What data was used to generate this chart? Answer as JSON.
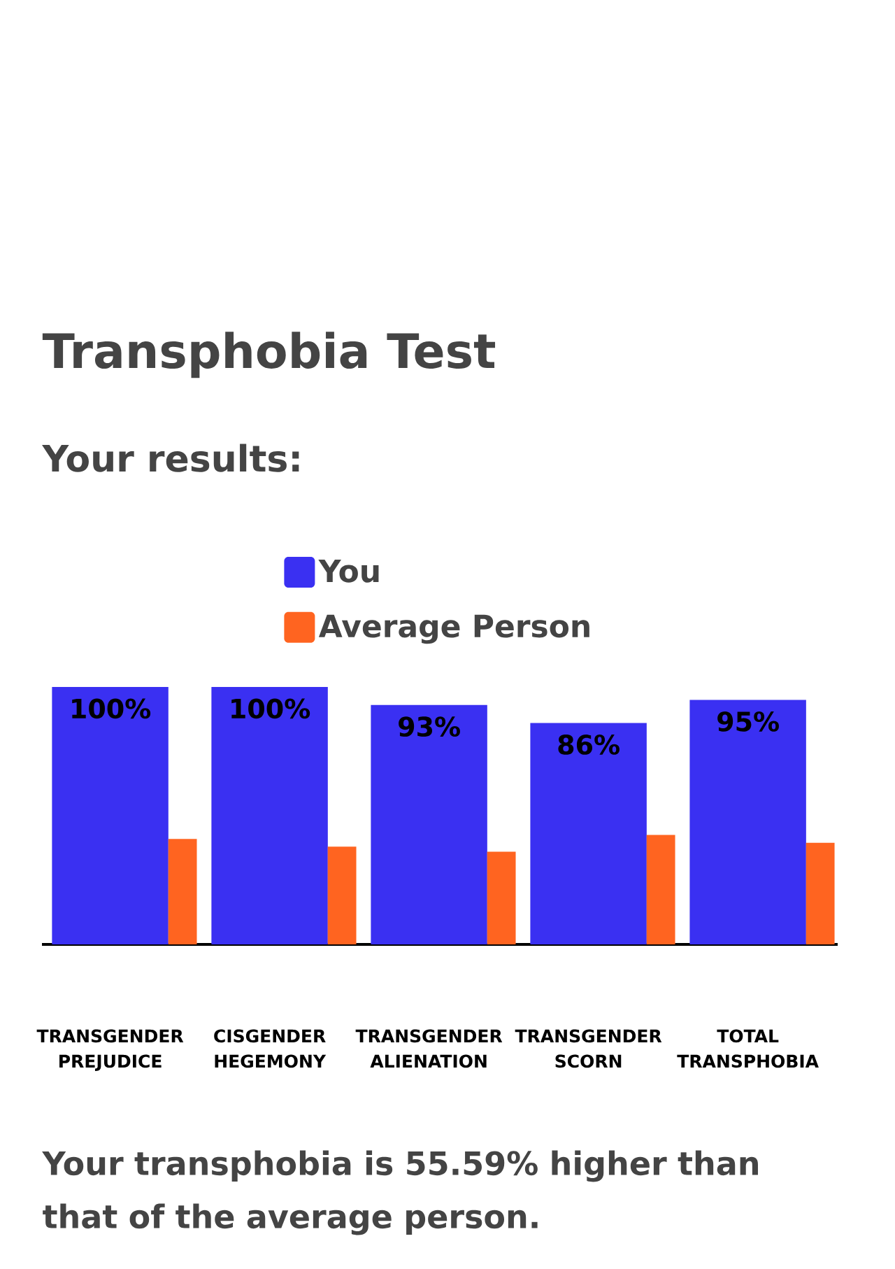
{
  "chart_data": {
    "type": "bar",
    "title": "Transphobia Test",
    "subtitle": "Your results:",
    "categories": [
      "TRANSGENDER PREJUDICE",
      "CISGENDER HEGEMONY",
      "TRANSGENDER ALIENATION",
      "TRANSGENDER SCORN",
      "TOTAL TRANSPHOBIA"
    ],
    "series": [
      {
        "name": "You",
        "color": "#3a30f2",
        "values": [
          100,
          100,
          93,
          86,
          95
        ],
        "value_labels": [
          "100%",
          "100%",
          "93%",
          "86%",
          "95%"
        ]
      },
      {
        "name": "Average Person",
        "color": "#ff6420",
        "values": [
          41,
          38,
          36,
          42.5,
          39.5
        ]
      }
    ],
    "legend": "top",
    "tick_labels": "x",
    "annotations": [
      "Your transphobia is 55.59% higher than that of the average person."
    ]
  }
}
